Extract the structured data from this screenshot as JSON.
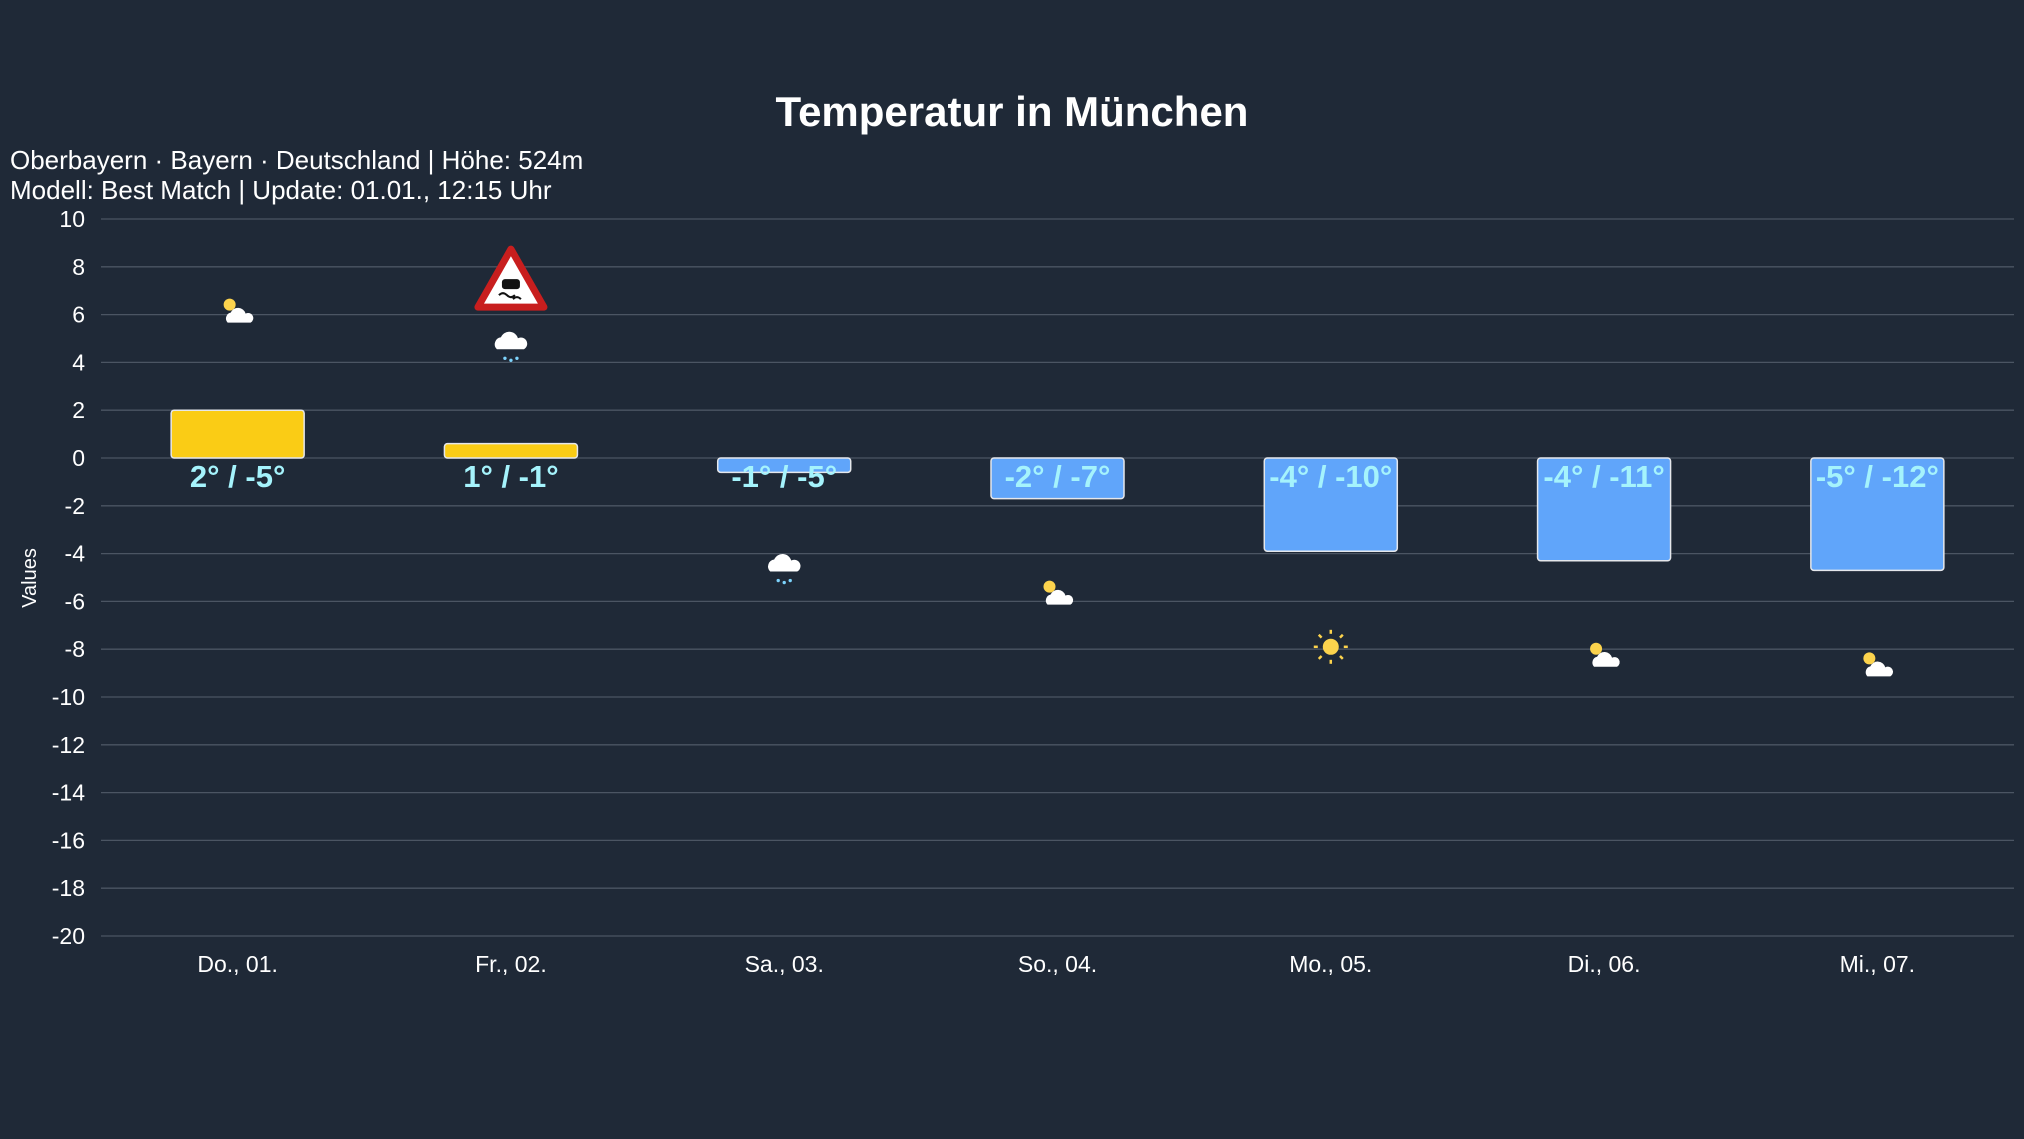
{
  "chart_data": {
    "type": "bar",
    "title": "Temperatur in München",
    "subtitle": [
      "Oberbayern · Bayern · Deutschland | Höhe: 524m",
      "Modell: Best Match | Update: 01.01., 12:15 Uhr"
    ],
    "ylabel": "Values",
    "xlabel": "",
    "ylim": [
      -20,
      10
    ],
    "yticks": [
      10,
      8,
      6,
      4,
      2,
      0,
      -2,
      -4,
      -6,
      -8,
      -10,
      -12,
      -14,
      -16,
      -18,
      -20
    ],
    "grid": true,
    "categories": [
      "Do., 01.",
      "Fr., 02.",
      "Sa., 03.",
      "So., 04.",
      "Mo., 05.",
      "Di., 06.",
      "Mi., 07."
    ],
    "values": [
      2,
      0.6,
      -0.6,
      -1.7,
      -3.9,
      -4.3,
      -4.7
    ],
    "labels": [
      "2° / -5°",
      "1° / -1°",
      "-1° / -5°",
      "-2° / -7°",
      "-4° / -10°",
      "-4° / -11°",
      "-5° / -12°"
    ],
    "icons": [
      {
        "name": "partly-cloudy-icon",
        "y": 6
      },
      {
        "name": "snow-icon",
        "y": 4.8
      },
      {
        "name": "snow-icon",
        "y": -4.5
      },
      {
        "name": "partly-cloudy-icon",
        "y": -5.8
      },
      {
        "name": "sun-icon",
        "y": -7.9
      },
      {
        "name": "partly-cloudy-icon",
        "y": -8.4
      },
      {
        "name": "partly-cloudy-icon",
        "y": -8.8
      }
    ],
    "warnings": [
      {
        "category": "Fr., 02.",
        "name": "slippery-road-warning-icon",
        "y": 7.4
      }
    ],
    "colors": {
      "positive": "#facc15",
      "negative": "#60a5fa",
      "label": "#a5f3fc",
      "background": "#1f2937",
      "grid": "#4b5563"
    }
  }
}
